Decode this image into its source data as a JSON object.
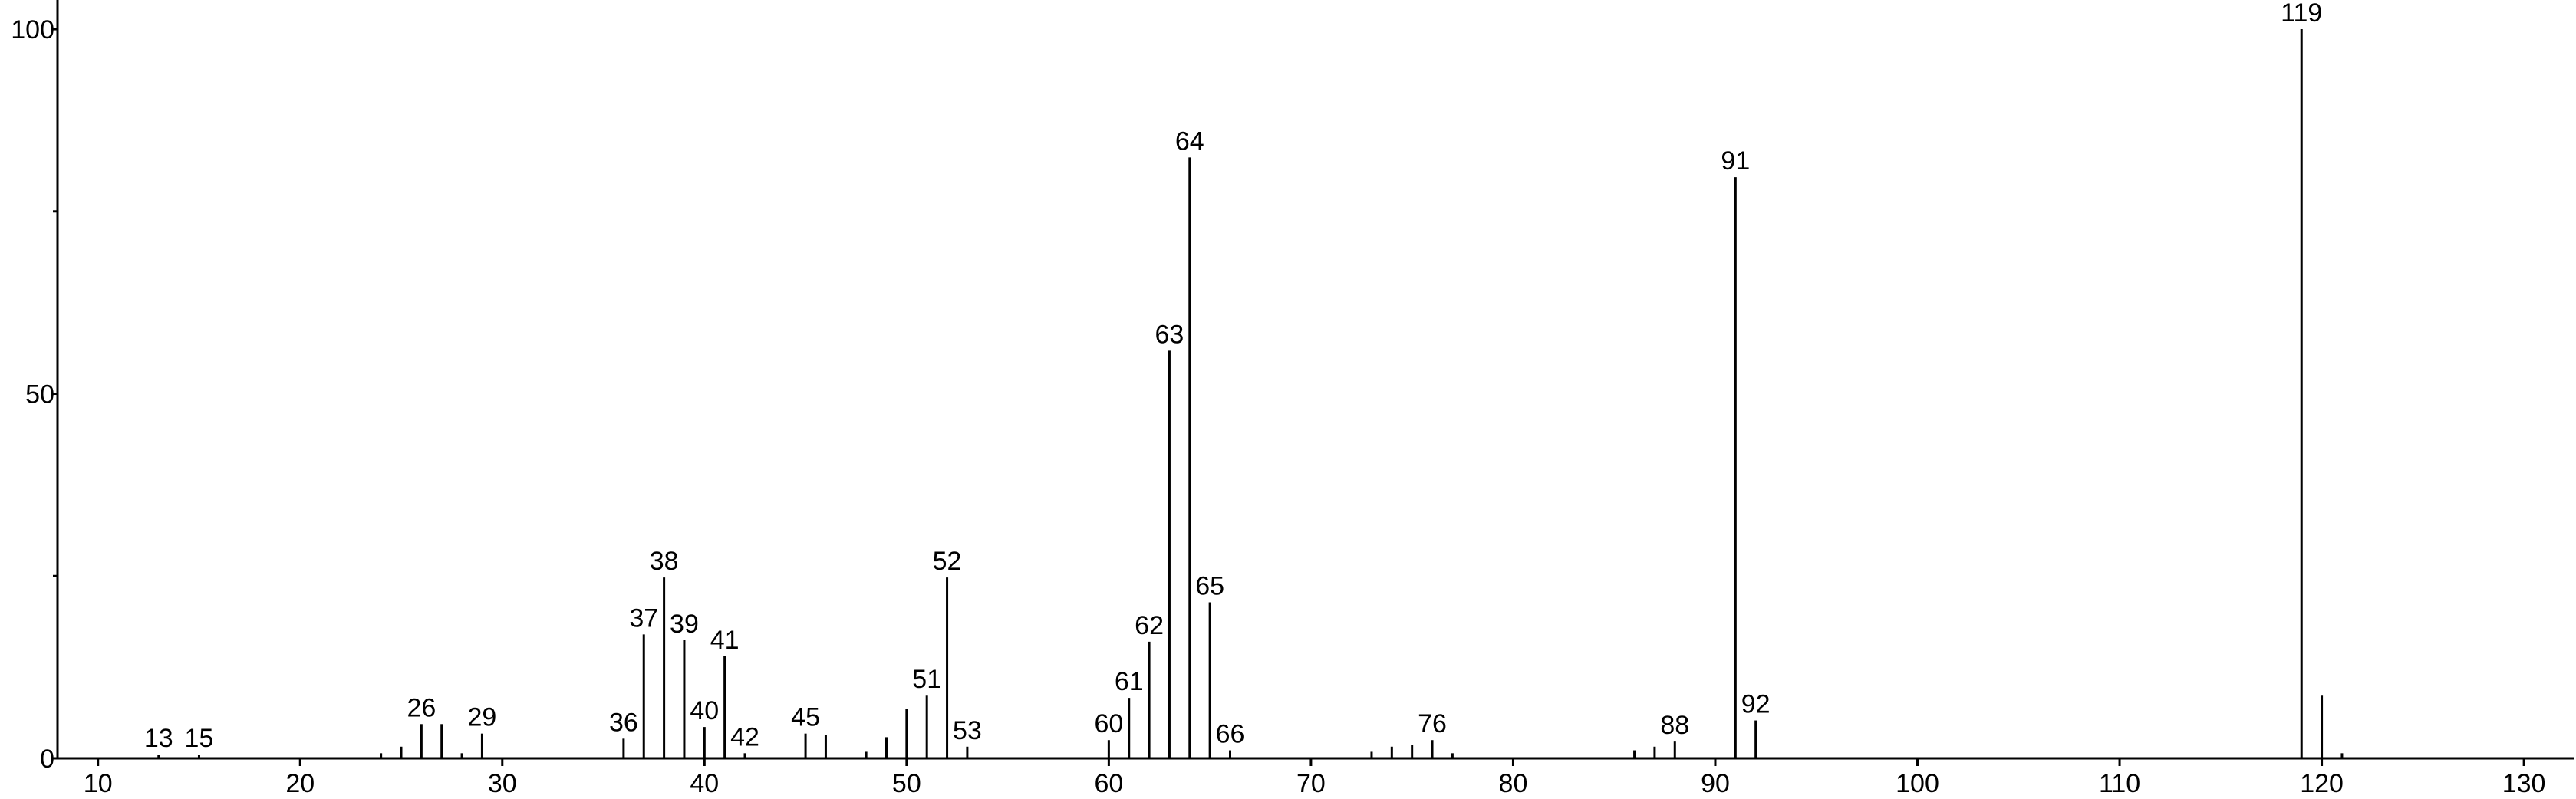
{
  "chart_data": {
    "type": "stem",
    "x": [
      13,
      15,
      24,
      25,
      26,
      27,
      28,
      29,
      36,
      37,
      38,
      39,
      40,
      41,
      42,
      45,
      46,
      48,
      49,
      50,
      51,
      52,
      53,
      60,
      61,
      62,
      63,
      64,
      65,
      66,
      73,
      74,
      75,
      76,
      77,
      86,
      87,
      88,
      91,
      92,
      119,
      120,
      121
    ],
    "values": [
      0.5,
      0.5,
      0.7,
      1.6,
      4.7,
      4.7,
      0.7,
      3.4,
      2.7,
      17,
      24.8,
      16.2,
      4.3,
      14,
      0.7,
      3.4,
      3.2,
      0.9,
      2.9,
      6.8,
      8.6,
      24.8,
      1.6,
      2.5,
      8.3,
      16,
      55.9,
      82.4,
      21.4,
      1.1,
      0.9,
      1.6,
      1.8,
      2.5,
      0.7,
      1.1,
      1.6,
      2.3,
      79.7,
      5.2,
      100,
      8.6,
      0.7
    ],
    "labeled": [
      true,
      true,
      false,
      false,
      true,
      false,
      false,
      true,
      true,
      true,
      true,
      true,
      true,
      true,
      true,
      true,
      false,
      false,
      false,
      false,
      true,
      true,
      true,
      true,
      true,
      true,
      true,
      true,
      true,
      true,
      false,
      false,
      false,
      true,
      false,
      false,
      false,
      true,
      true,
      true,
      true,
      false,
      false
    ],
    "color": "#000000",
    "xlim": [
      8,
      132.5
    ],
    "xticks": [
      10,
      20,
      30,
      40,
      50,
      60,
      70,
      80,
      90,
      100,
      110,
      120,
      130
    ],
    "ylim": [
      0,
      104
    ],
    "yticks": [
      0,
      50,
      100
    ],
    "yminor": [
      25,
      75
    ]
  }
}
